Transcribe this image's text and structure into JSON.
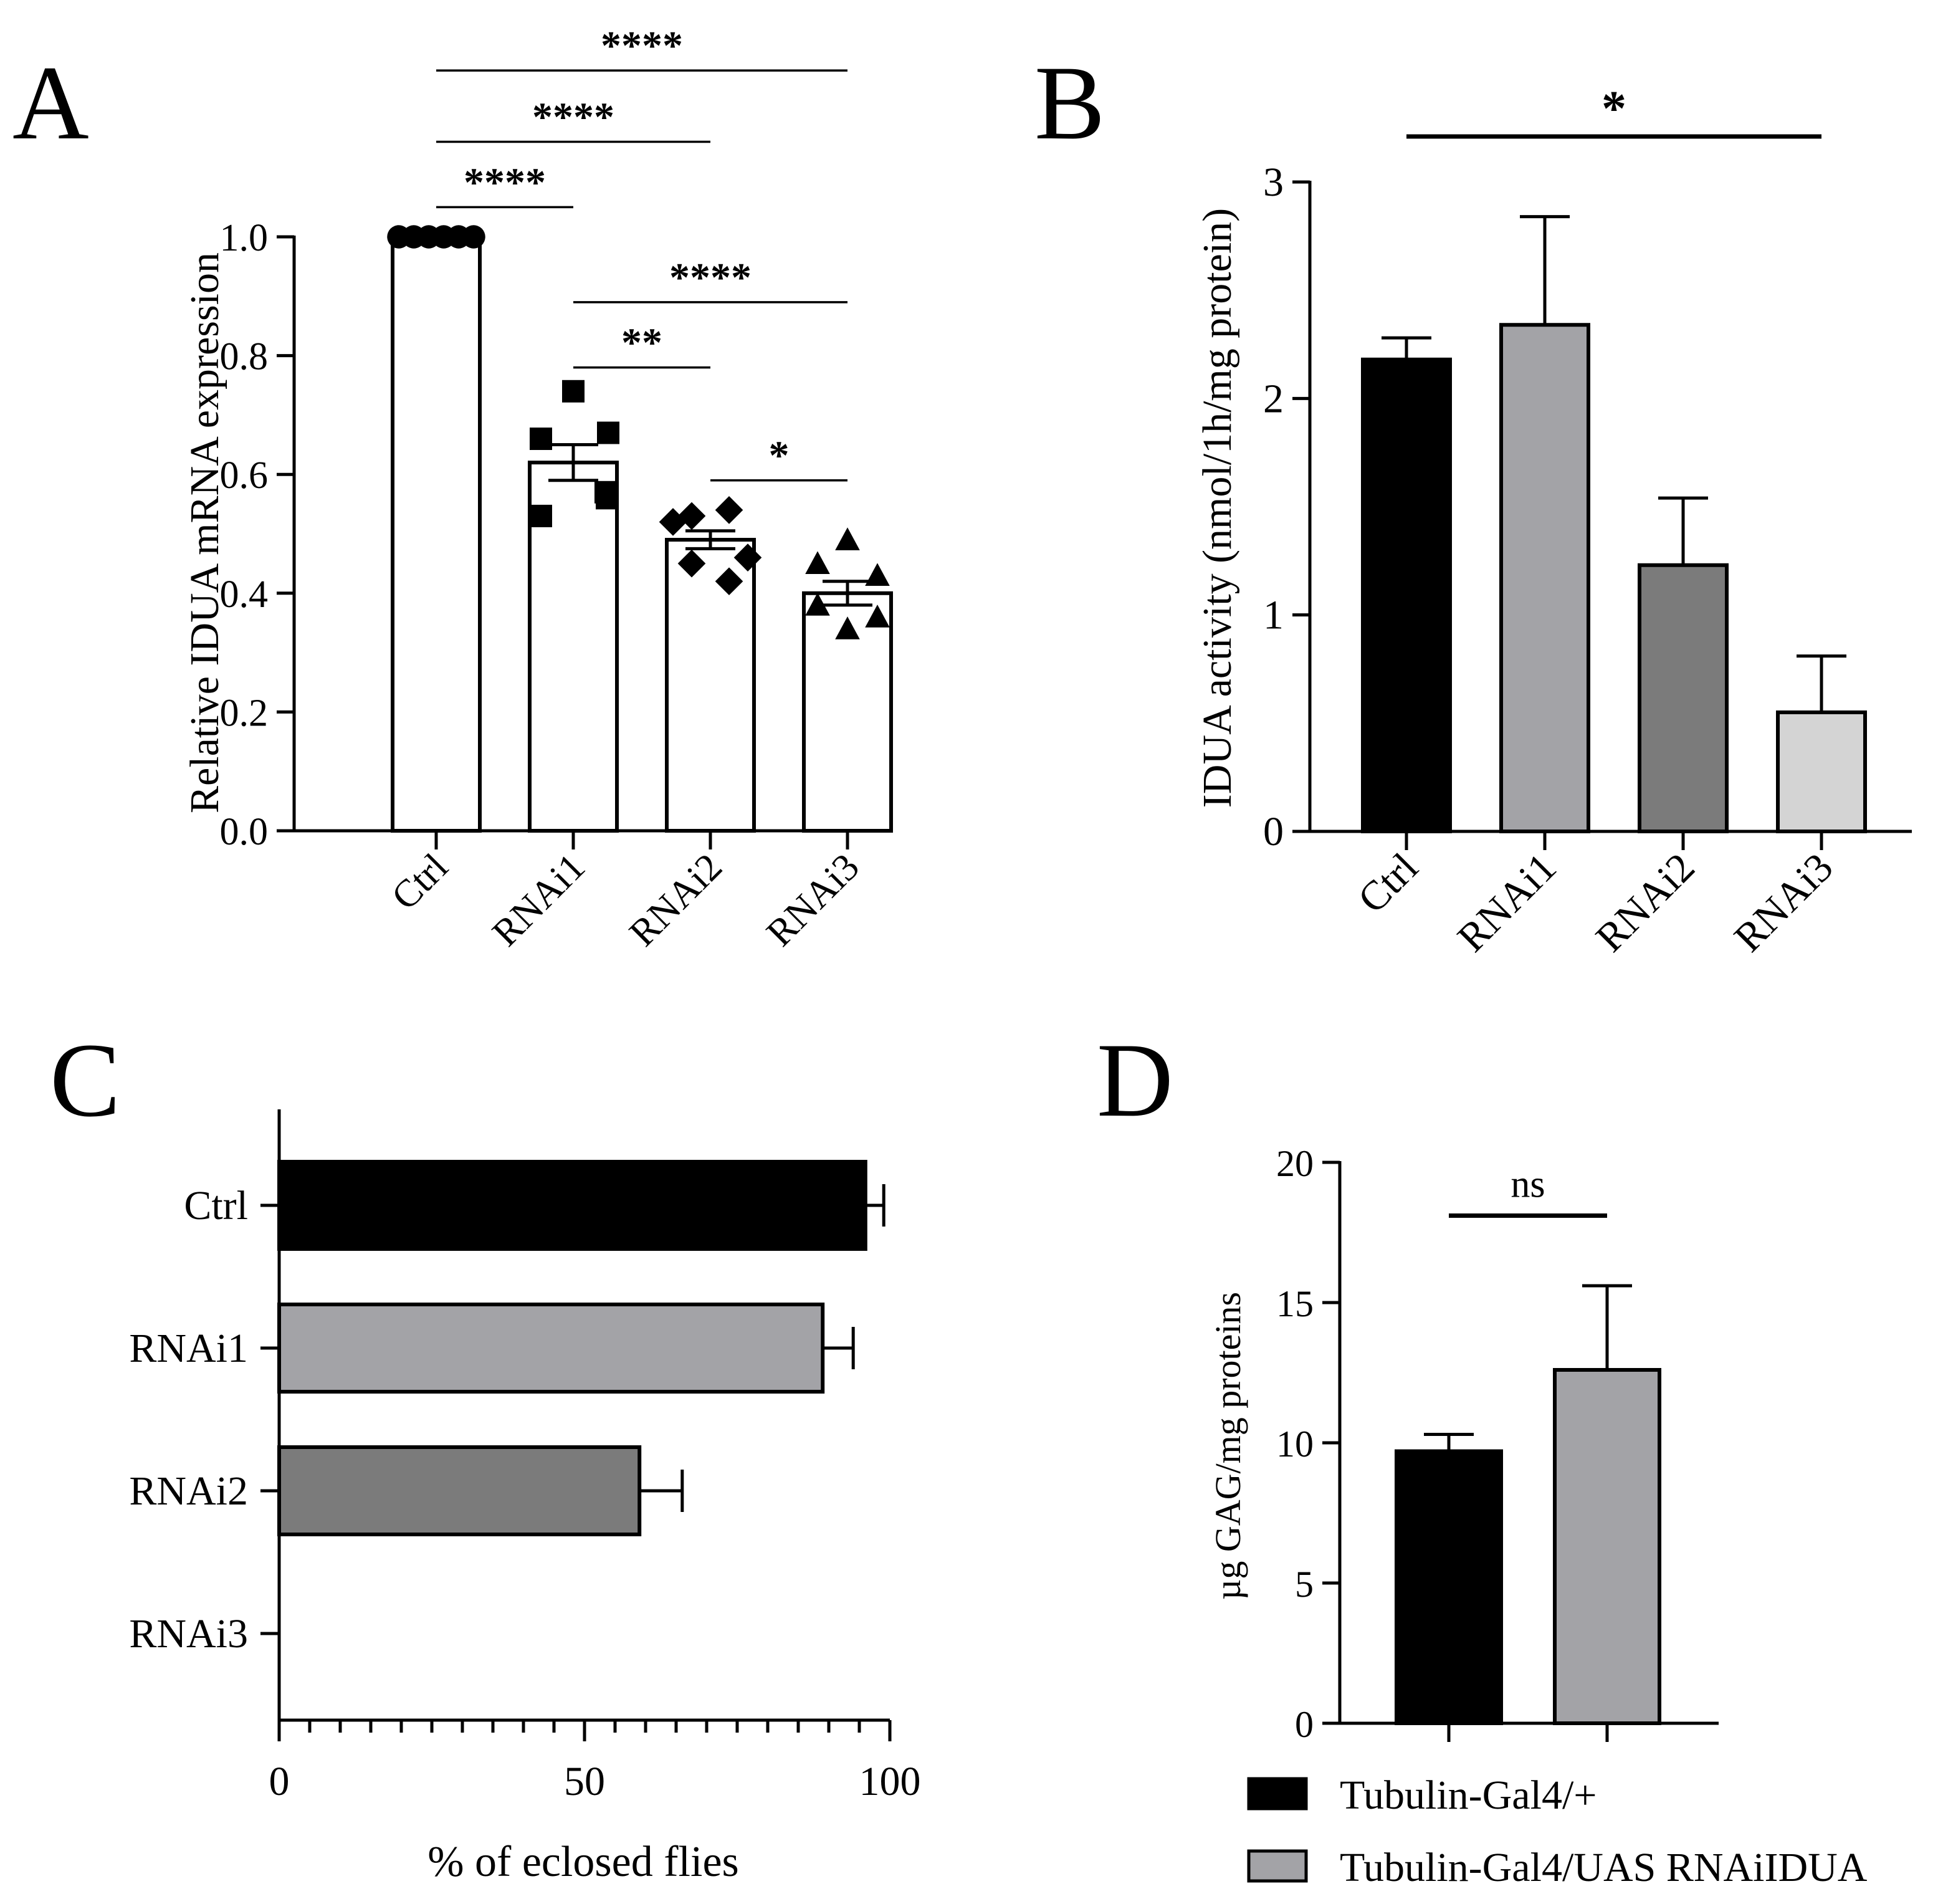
{
  "chart_data": [
    {
      "panel": "A",
      "type": "bar",
      "ylabel": "Relative IDUA mRNA expression",
      "categories": [
        "Ctrl",
        "RNAi1",
        "RNAi2",
        "RNAi3"
      ],
      "values": [
        1.0,
        0.62,
        0.49,
        0.4
      ],
      "errors": [
        0.0,
        0.03,
        0.015,
        0.02
      ],
      "points": [
        [
          1.0,
          1.0,
          1.0,
          1.0,
          1.0,
          1.0
        ],
        [
          0.74,
          0.66,
          0.67,
          0.57,
          0.53,
          0.56
        ],
        [
          0.53,
          0.54,
          0.52,
          0.46,
          0.45,
          0.42
        ],
        [
          0.49,
          0.45,
          0.43,
          0.36,
          0.38,
          0.34
        ]
      ],
      "marker_shapes": [
        "circle",
        "square",
        "diamond",
        "triangle"
      ],
      "ylim": [
        0,
        1.0
      ],
      "yticks": [
        0.0,
        0.2,
        0.4,
        0.6,
        0.8,
        1.0
      ],
      "ytick_labels": [
        "0.0",
        "0.2",
        "0.4",
        "0.6",
        "0.8",
        "1.0"
      ],
      "bar_colors": [
        "#ffffff",
        "#ffffff",
        "#ffffff",
        "#ffffff"
      ],
      "significance": [
        {
          "from": 0,
          "to": 1,
          "y": 1.05,
          "label": "****"
        },
        {
          "from": 0,
          "to": 2,
          "y": 1.16,
          "label": "****"
        },
        {
          "from": 0,
          "to": 3,
          "y": 1.28,
          "label": "****"
        },
        {
          "from": 1,
          "to": 3,
          "y": 0.89,
          "label": "****"
        },
        {
          "from": 1,
          "to": 2,
          "y": 0.78,
          "label": "**"
        },
        {
          "from": 2,
          "to": 3,
          "y": 0.59,
          "label": "*"
        }
      ]
    },
    {
      "panel": "B",
      "type": "bar",
      "ylabel": "IDUA activity (nmol/1h/mg protein)",
      "categories": [
        "Ctrl",
        "RNAi1",
        "RNAi2",
        "RNAi3"
      ],
      "values": [
        2.18,
        2.34,
        1.23,
        0.55
      ],
      "errors": [
        0.1,
        0.5,
        0.31,
        0.26
      ],
      "ylim": [
        0,
        3
      ],
      "yticks": [
        0,
        1,
        2,
        3
      ],
      "ytick_labels": [
        "0",
        "1",
        "2",
        "3"
      ],
      "bar_colors": [
        "#000000",
        "#a3a3a7",
        "#7b7b7b",
        "#d4d4d4"
      ],
      "significance": [
        {
          "from": 0,
          "to": 3,
          "y": 3.21,
          "label": "*"
        }
      ]
    },
    {
      "panel": "C",
      "type": "bar",
      "orientation": "horizontal",
      "xlabel": "% of eclosed flies",
      "categories": [
        "Ctrl",
        "RNAi1",
        "RNAi2",
        "RNAi3"
      ],
      "values": [
        96,
        89,
        59,
        0
      ],
      "errors": [
        3,
        5,
        7,
        0
      ],
      "xlim": [
        0,
        100
      ],
      "xticks": [
        0,
        50,
        100
      ],
      "xtick_labels": [
        "0",
        "50",
        "100"
      ],
      "bar_colors": [
        "#000000",
        "#a3a3a7",
        "#7b7b7b",
        "#ffffff"
      ]
    },
    {
      "panel": "D",
      "type": "bar",
      "ylabel": "µg GAG/mg proteins",
      "categories": [
        "Tubulin-Gal4/+",
        "Tubulin-Gal4/UAS RNAiIDUA"
      ],
      "values": [
        9.7,
        12.6
      ],
      "errors": [
        0.6,
        3.0
      ],
      "ylim": [
        0,
        20
      ],
      "yticks": [
        0,
        5,
        10,
        15,
        20
      ],
      "ytick_labels": [
        "0",
        "5",
        "10",
        "15",
        "20"
      ],
      "bar_colors": [
        "#000000",
        "#a3a3a7"
      ],
      "legend": [
        "Tubulin-Gal4/+",
        "Tubulin-Gal4/UAS RNAiIDUA"
      ],
      "legend_position": "bottom",
      "significance": [
        {
          "from": 0,
          "to": 1,
          "y": 18.1,
          "label": "ns"
        }
      ]
    }
  ]
}
